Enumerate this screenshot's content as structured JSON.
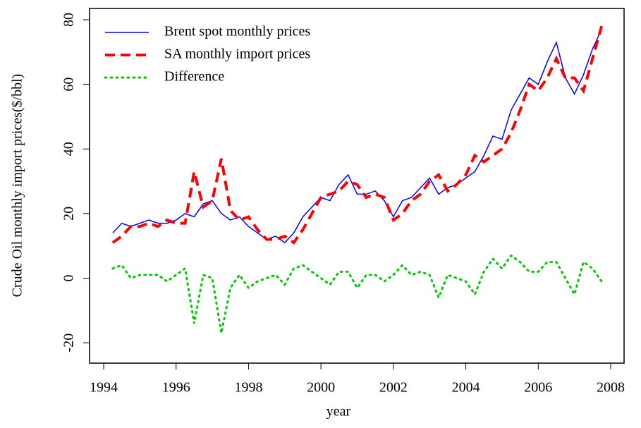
{
  "chart_data": {
    "type": "line",
    "xlabel": "year",
    "ylabel": "Crude Oil monthly import prices($/bbl)",
    "x": [
      1994.25,
      1994.5,
      1994.75,
      1995,
      1995.25,
      1995.5,
      1995.75,
      1996,
      1996.25,
      1996.5,
      1996.75,
      1997,
      1997.25,
      1997.5,
      1997.75,
      1998,
      1998.25,
      1998.5,
      1998.75,
      1999,
      1999.25,
      1999.5,
      1999.75,
      2000,
      2000.25,
      2000.5,
      2000.75,
      2001,
      2001.25,
      2001.5,
      2001.75,
      2002,
      2002.25,
      2002.5,
      2002.75,
      2003,
      2003.25,
      2003.5,
      2003.75,
      2004,
      2004.25,
      2004.5,
      2004.75,
      2005,
      2005.25,
      2005.5,
      2005.75,
      2006,
      2006.25,
      2006.5,
      2006.75,
      2007,
      2007.25,
      2007.5,
      2007.75
    ],
    "series": [
      {
        "name": "Brent spot monthly prices",
        "color": "#0000ff",
        "linestyle": "solid",
        "values": [
          14,
          17,
          16,
          17,
          18,
          17,
          17,
          18,
          20,
          19,
          23,
          24,
          20,
          18,
          19,
          16,
          14,
          12,
          13,
          11,
          14,
          19,
          22,
          25,
          24,
          29,
          32,
          26,
          26,
          27,
          24,
          19,
          24,
          25,
          28,
          31,
          26,
          28,
          29,
          31,
          33,
          38,
          44,
          43,
          52,
          57,
          62,
          60,
          67,
          73,
          62,
          57,
          63,
          71,
          77
        ]
      },
      {
        "name": "SA monthly import prices",
        "color": "#ff0000",
        "linestyle": "dashed",
        "values": [
          11,
          13,
          16,
          16,
          17,
          16,
          18,
          17,
          17,
          33,
          22,
          24,
          37,
          21,
          18,
          19,
          15,
          12,
          12,
          13,
          11,
          15,
          20,
          25,
          26,
          27,
          30,
          29,
          25,
          26,
          25,
          18,
          20,
          24,
          26,
          30,
          32,
          27,
          29,
          32,
          38,
          36,
          38,
          40,
          45,
          52,
          60,
          58,
          62,
          68,
          62,
          62,
          58,
          68,
          78
        ]
      },
      {
        "name": "Difference",
        "color": "#00cc00",
        "linestyle": "dotted",
        "values": [
          3,
          4,
          0,
          1,
          1,
          1,
          -1,
          1,
          3,
          -14,
          1,
          0,
          -17,
          -3,
          1,
          -3,
          -1,
          0,
          1,
          -2,
          3,
          4,
          2,
          0,
          -2,
          2,
          2,
          -3,
          1,
          1,
          -1,
          1,
          4,
          1,
          2,
          1,
          -6,
          1,
          0,
          -1,
          -5,
          2,
          6,
          3,
          7,
          5,
          2,
          2,
          5,
          5,
          0,
          -5,
          5,
          3,
          -1
        ]
      }
    ],
    "xlim": [
      1993.61,
      2008.37
    ],
    "xticks": [
      1994,
      1996,
      1998,
      2000,
      2002,
      2004,
      2006,
      2008
    ],
    "ylim": [
      -26.3,
      83.5
    ],
    "yticks": [
      -20,
      0,
      20,
      40,
      60,
      80
    ],
    "legend": "top-left"
  }
}
